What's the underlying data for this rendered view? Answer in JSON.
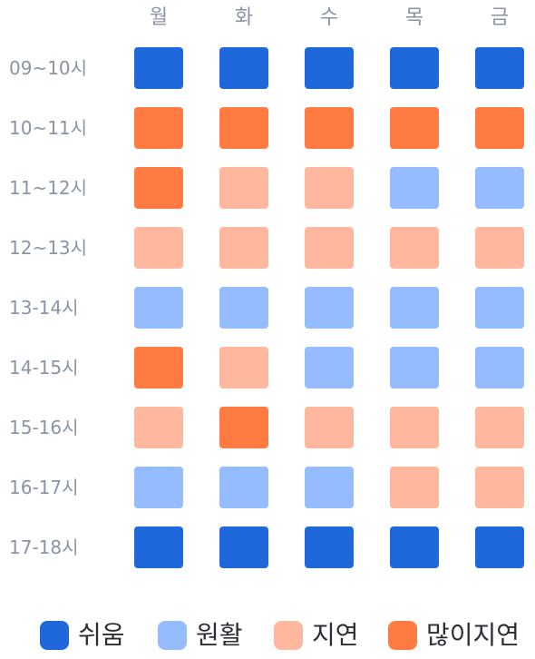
{
  "days": [
    "월",
    "화",
    "수",
    "목",
    "금"
  ],
  "times": [
    "09~10시",
    "10~11시",
    "11~12시",
    "12~13시",
    "13-14시",
    "14-15시",
    "15-16시",
    "16-17시",
    "17-18시"
  ],
  "levels": {
    "easy": {
      "label": "쉬움",
      "color": "#1e68dc"
    },
    "smooth": {
      "label": "원활",
      "color": "#94bcff"
    },
    "delay": {
      "label": "지연",
      "color": "#ffb89d"
    },
    "heavy": {
      "label": "많이지연",
      "color": "#ff7b42"
    }
  },
  "legend_order": [
    "easy",
    "smooth",
    "delay",
    "heavy"
  ],
  "grid": [
    [
      "easy",
      "easy",
      "easy",
      "easy",
      "easy"
    ],
    [
      "heavy",
      "heavy",
      "heavy",
      "heavy",
      "heavy"
    ],
    [
      "heavy",
      "delay",
      "delay",
      "smooth",
      "smooth"
    ],
    [
      "delay",
      "delay",
      "delay",
      "delay",
      "delay"
    ],
    [
      "smooth",
      "smooth",
      "smooth",
      "smooth",
      "smooth"
    ],
    [
      "heavy",
      "delay",
      "smooth",
      "smooth",
      "smooth"
    ],
    [
      "delay",
      "heavy",
      "delay",
      "delay",
      "delay"
    ],
    [
      "smooth",
      "smooth",
      "smooth",
      "delay",
      "delay"
    ],
    [
      "easy",
      "easy",
      "easy",
      "easy",
      "easy"
    ]
  ]
}
